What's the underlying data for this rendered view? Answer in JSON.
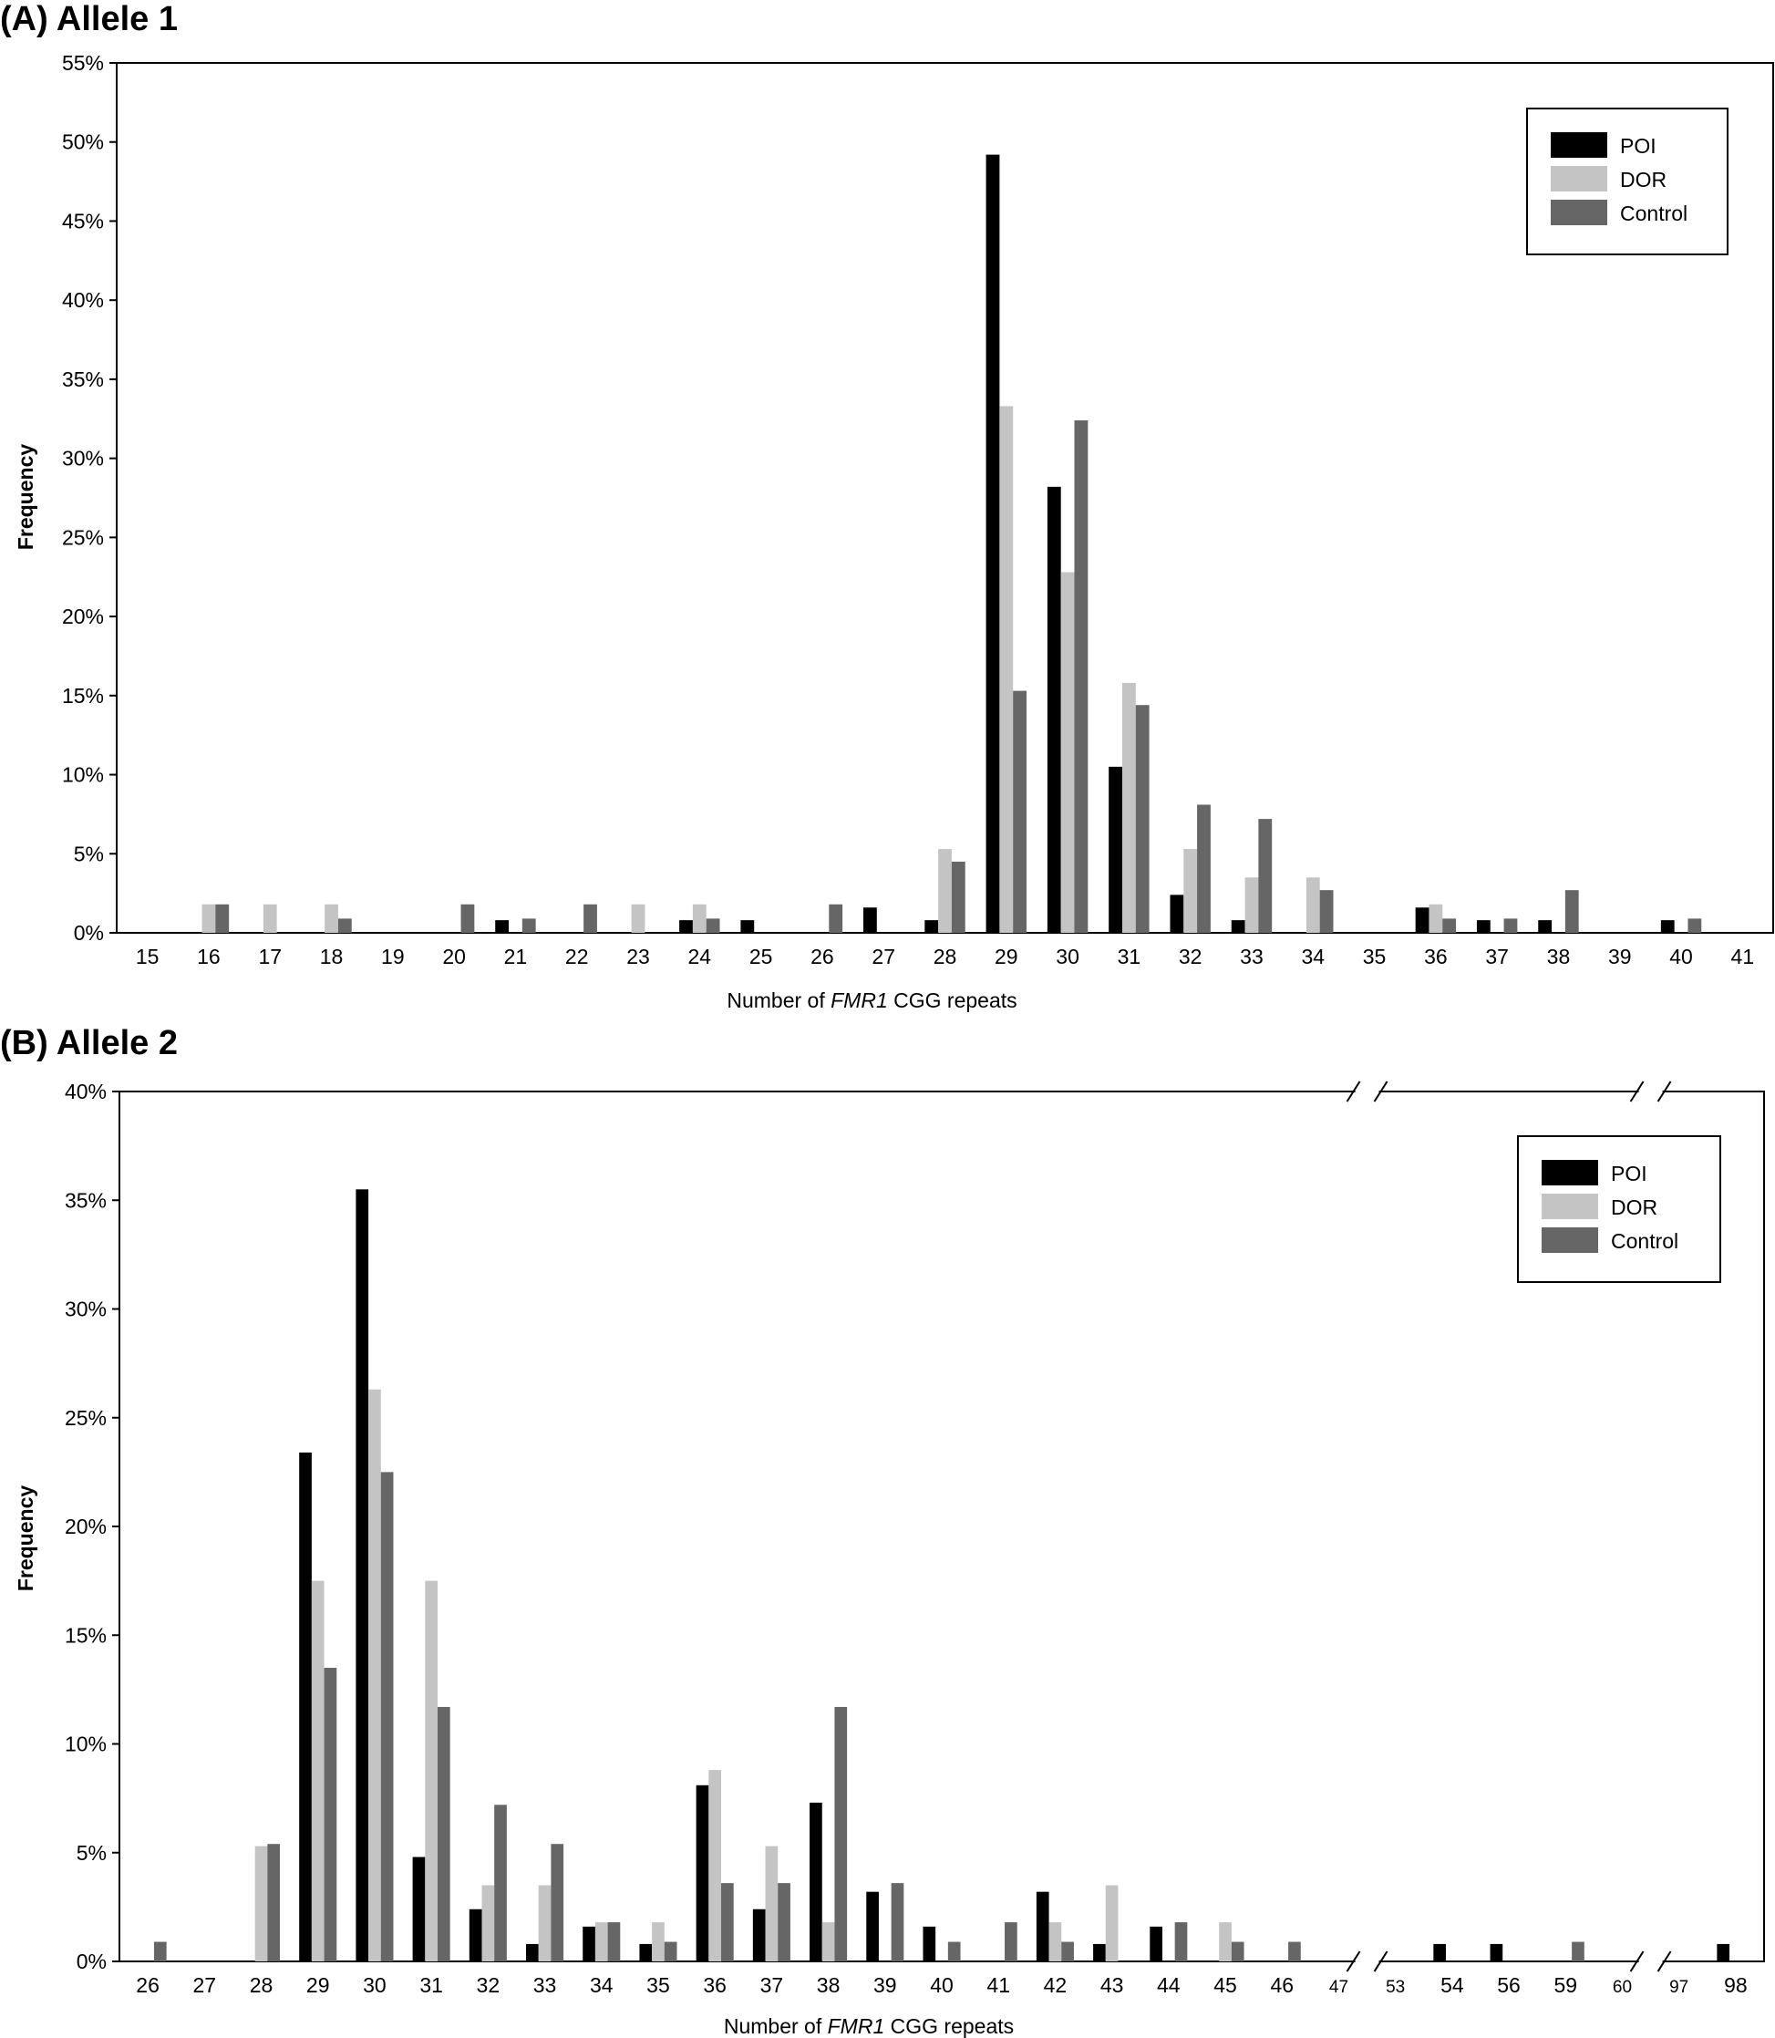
{
  "colors": {
    "POI": "#000000",
    "DOR": "#c4c4c4",
    "Control": "#666666"
  },
  "chart_data": [
    {
      "type": "bar",
      "title": "(A) Allele 1",
      "xlabel_parts": [
        "Number of ",
        "FMR1",
        " CGG repeats"
      ],
      "ylabel": "Frequency",
      "ylim": [
        0,
        55
      ],
      "y_ticks": [
        "0%",
        "5%",
        "10%",
        "15%",
        "20%",
        "25%",
        "30%",
        "35%",
        "40%",
        "45%",
        "50%",
        "55%"
      ],
      "legend_position": "top-right",
      "categories": [
        "15",
        "16",
        "17",
        "18",
        "19",
        "20",
        "21",
        "22",
        "23",
        "24",
        "25",
        "26",
        "27",
        "28",
        "29",
        "30",
        "31",
        "32",
        "33",
        "34",
        "35",
        "36",
        "37",
        "38",
        "39",
        "40",
        "41"
      ],
      "series": [
        {
          "name": "POI",
          "values": [
            0,
            0,
            0,
            0,
            0,
            0,
            0.8,
            0,
            0,
            0.8,
            0.8,
            0,
            1.6,
            0.8,
            49.2,
            28.2,
            10.5,
            2.4,
            0.8,
            0,
            0,
            1.6,
            0.8,
            0.8,
            0,
            0.8,
            0
          ]
        },
        {
          "name": "DOR",
          "values": [
            0,
            1.8,
            1.8,
            1.8,
            0,
            0,
            0,
            0,
            1.8,
            1.8,
            0,
            0,
            0,
            5.3,
            33.3,
            22.8,
            15.8,
            5.3,
            3.5,
            3.5,
            0,
            1.8,
            0,
            0,
            0,
            0,
            0
          ]
        },
        {
          "name": "Control",
          "values": [
            0,
            1.8,
            0,
            0.9,
            0,
            1.8,
            0.9,
            1.8,
            0,
            0.9,
            0,
            1.8,
            0,
            4.5,
            15.3,
            32.4,
            14.4,
            8.1,
            7.2,
            2.7,
            0,
            0.9,
            0.9,
            2.7,
            0,
            0.9,
            0
          ]
        }
      ]
    },
    {
      "type": "bar",
      "title": "(B) Allele 2",
      "xlabel_parts": [
        "Number of ",
        "FMR1",
        " CGG repeats"
      ],
      "ylabel": "Frequency",
      "ylim": [
        0,
        40
      ],
      "y_ticks": [
        "0%",
        "5%",
        "10%",
        "15%",
        "20%",
        "25%",
        "30%",
        "35%",
        "40%"
      ],
      "legend_position": "top-right",
      "axis_breaks_after": [
        "47",
        "60"
      ],
      "categories": [
        "26",
        "27",
        "28",
        "29",
        "30",
        "31",
        "32",
        "33",
        "34",
        "35",
        "36",
        "37",
        "38",
        "39",
        "40",
        "41",
        "42",
        "43",
        "44",
        "45",
        "46",
        "47",
        "53",
        "54",
        "56",
        "59",
        "60",
        "97",
        "98"
      ],
      "small_labels": [
        "47",
        "53",
        "60",
        "97"
      ],
      "series": [
        {
          "name": "POI",
          "values": [
            0,
            0,
            0,
            23.4,
            35.5,
            4.8,
            2.4,
            0.8,
            1.6,
            0.8,
            8.1,
            2.4,
            7.3,
            3.2,
            1.6,
            0,
            3.2,
            0.8,
            1.6,
            0,
            0,
            0,
            0,
            0.8,
            0.8,
            0,
            0,
            0,
            0.8
          ]
        },
        {
          "name": "DOR",
          "values": [
            0,
            0,
            5.3,
            17.5,
            26.3,
            17.5,
            3.5,
            3.5,
            1.8,
            1.8,
            8.8,
            5.3,
            1.8,
            0,
            0,
            0,
            1.8,
            3.5,
            0,
            1.8,
            0,
            0,
            0,
            0,
            0,
            0,
            0,
            0,
            0
          ]
        },
        {
          "name": "Control",
          "values": [
            0.9,
            0,
            5.4,
            13.5,
            22.5,
            11.7,
            7.2,
            5.4,
            1.8,
            0.9,
            3.6,
            3.6,
            11.7,
            3.6,
            0.9,
            1.8,
            0.9,
            0,
            1.8,
            0.9,
            0.9,
            0,
            0,
            0,
            0,
            0.9,
            0,
            0,
            0
          ]
        }
      ]
    }
  ]
}
